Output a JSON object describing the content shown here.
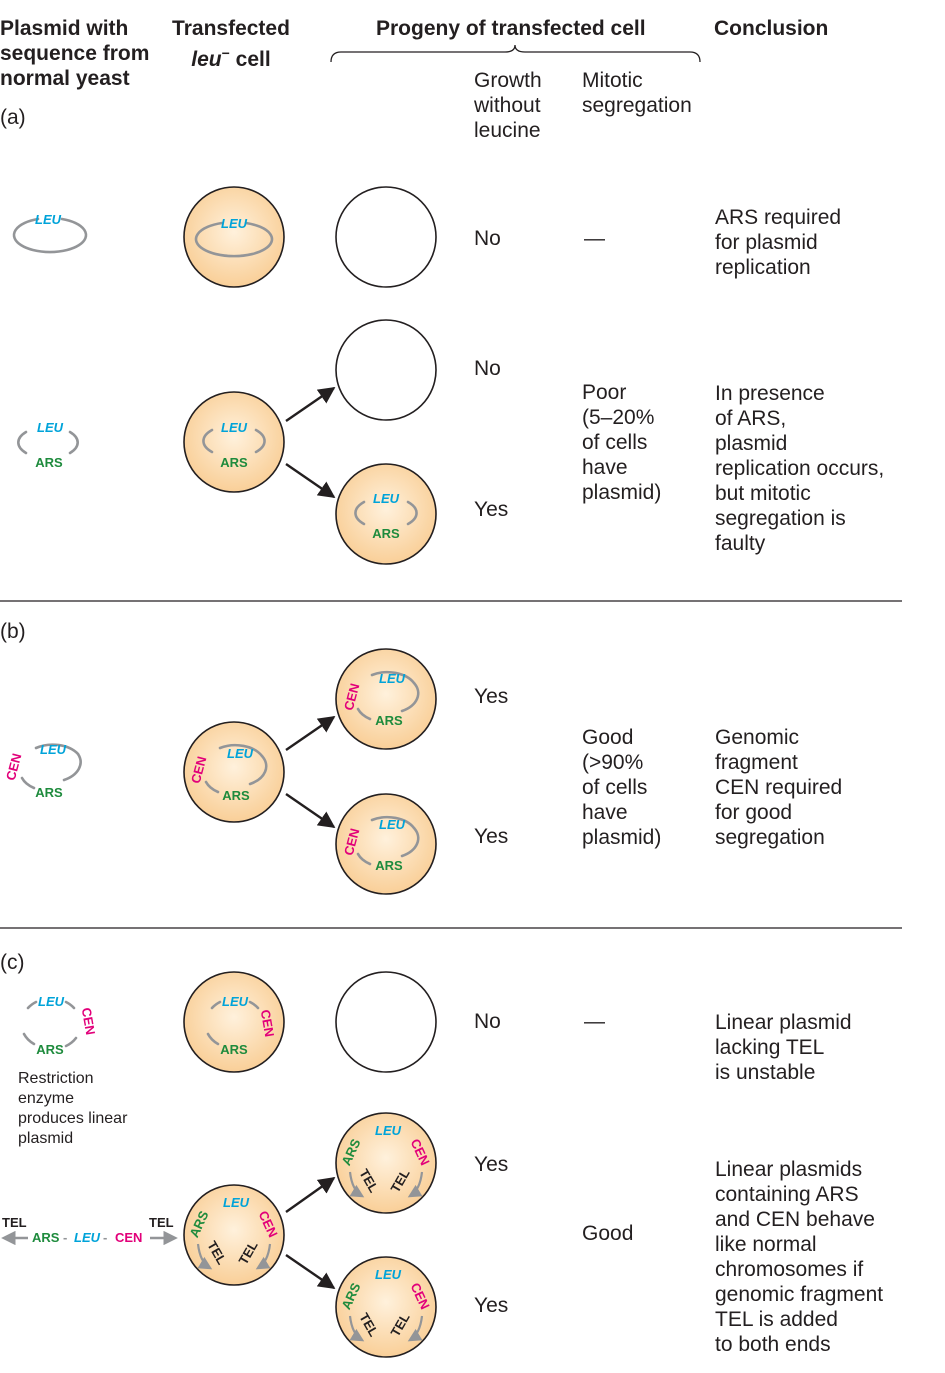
{
  "headers": {
    "col1": "Plasmid with\nsequence from\nnormal yeast",
    "col2_line1": "Transfected",
    "col2_gene": "leu",
    "col2_sup": "−",
    "col2_tail": " cell",
    "col3": "Progeny of transfected cell",
    "col3_sub_growth": "Growth\nwithout\nleucine",
    "col3_sub_mitotic": "Mitotic\nsegregation",
    "col4": "Conclusion"
  },
  "panels": {
    "a": {
      "label": "(a)",
      "row1": {
        "growth": "No",
        "segregation": "—",
        "conclusion": "ARS required\nfor plasmid\nreplication"
      },
      "row2": {
        "growth_top": "No",
        "growth_bottom": "Yes",
        "segregation": "Poor\n(5–20%\nof cells\nhave\nplasmid)",
        "conclusion": "In presence\nof ARS,\nplasmid\nreplication occurs,\nbut mitotic\nsegregation is\nfaulty"
      }
    },
    "b": {
      "label": "(b)",
      "growth_top": "Yes",
      "growth_bottom": "Yes",
      "segregation": "Good\n(>90%\nof cells\nhave\nplasmid)",
      "conclusion": "Genomic\nfragment\nCEN required\nfor good\nsegregation"
    },
    "c": {
      "label": "(c)",
      "restriction_note": "Restriction\nenzyme\nproduces linear\nplasmid",
      "row1": {
        "growth": "No",
        "segregation": "—",
        "conclusion": "Linear plasmid\nlacking TEL\nis unstable"
      },
      "row2": {
        "growth_top": "Yes",
        "growth_bottom": "Yes",
        "segregation": "Good",
        "conclusion": "Linear plasmids\ncontaining ARS\nand CEN behave\nlike normal\nchromosomes if\ngenomic fragment\nTEL is added\nto both ends"
      }
    }
  },
  "elements": {
    "leu": "LEU",
    "ars": "ARS",
    "cen": "CEN",
    "tel": "TEL",
    "dash": "-"
  },
  "colors": {
    "cell_fill": "#fcdcae",
    "leu": "#00a3d9",
    "ars": "#1e8b3d",
    "cen": "#e2007a",
    "plasmid": "#939598"
  }
}
